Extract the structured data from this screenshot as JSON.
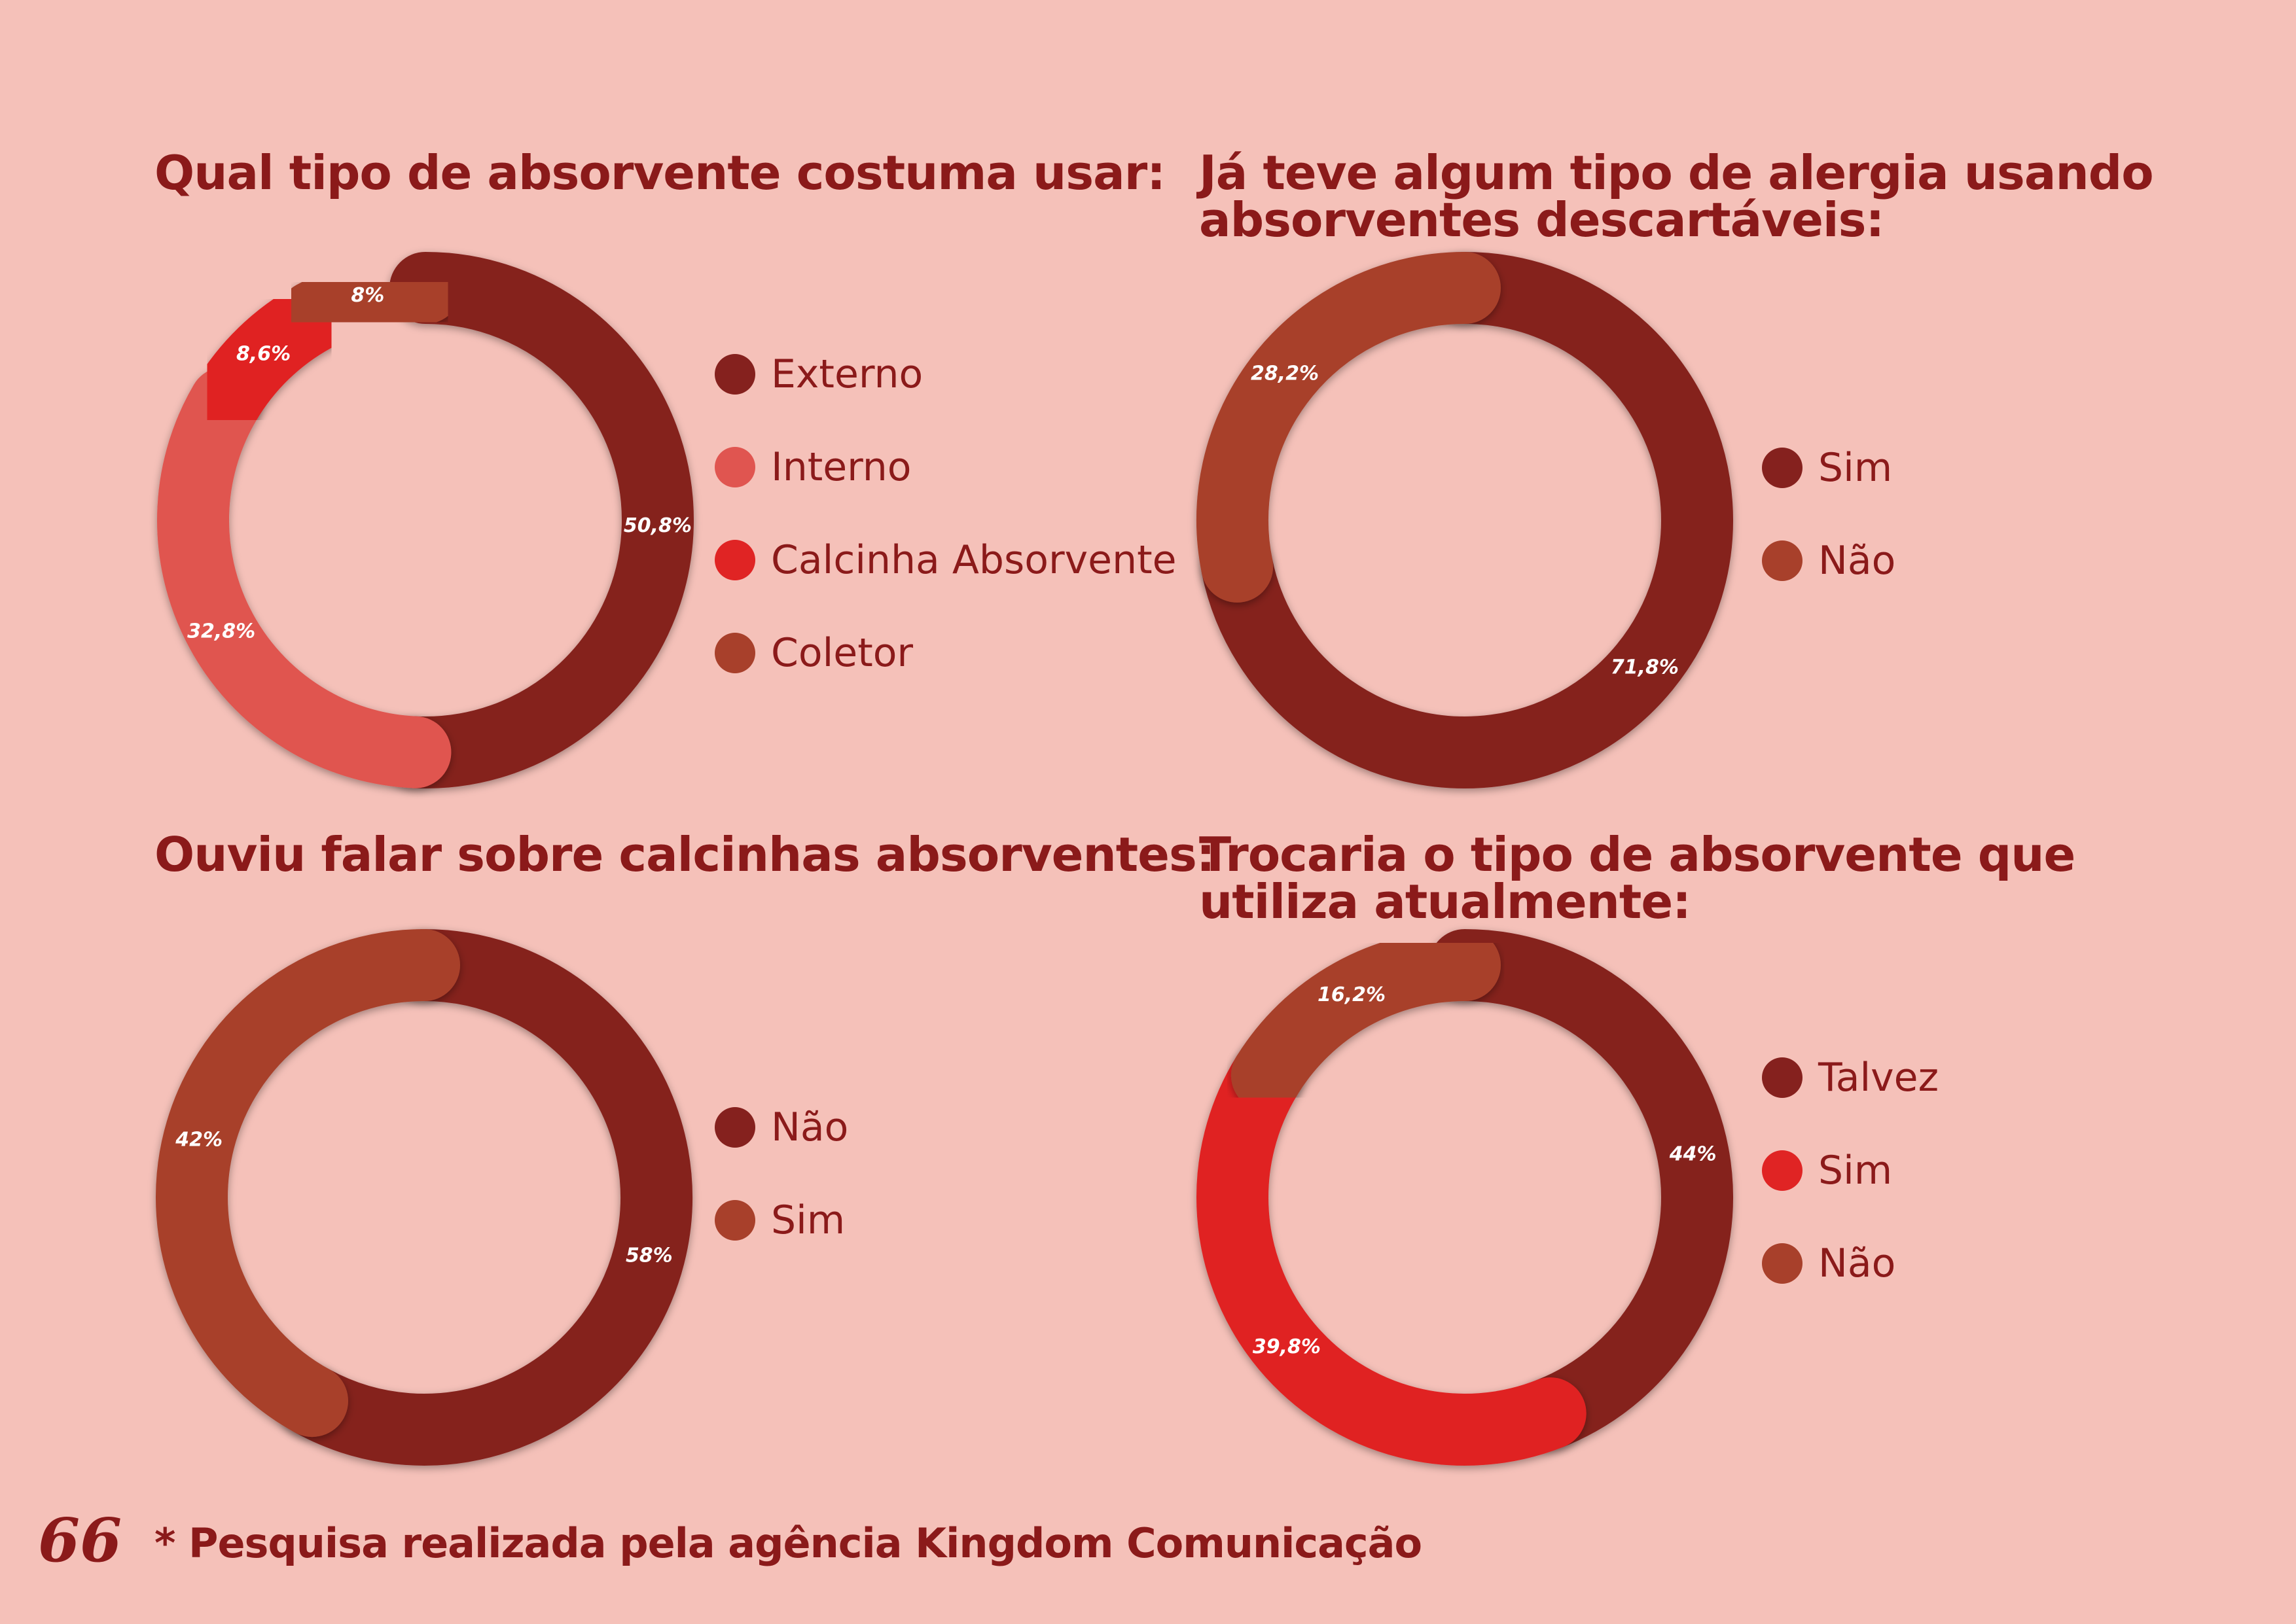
{
  "chart_data": [
    {
      "type": "pie",
      "title": "Qual tipo de absorvente costuma usar:",
      "categories": [
        "Externo",
        "Interno",
        "Calcinha Absorvente",
        "Coletor"
      ],
      "values": [
        50.8,
        32.8,
        8.6,
        8
      ],
      "labels": [
        "50,8%",
        "32,8%",
        "8,6%",
        "8%"
      ],
      "colors": [
        "#85211e",
        "#e05550",
        "#e02424",
        "#a8402b"
      ],
      "legend": "right"
    },
    {
      "type": "pie",
      "title": "Já teve algum tipo de alergia usando absorventes descartáveis:",
      "title_lines": [
        "Já teve algum tipo de alergia usando",
        "absorventes descartáveis:"
      ],
      "categories": [
        "Sim",
        "Não"
      ],
      "values": [
        71.8,
        28.2
      ],
      "labels": [
        "71,8%",
        "28,2%"
      ],
      "colors": [
        "#85211e",
        "#a8402b"
      ],
      "legend": "right"
    },
    {
      "type": "pie",
      "title": "Ouviu falar sobre calcinhas absorventes:",
      "categories": [
        "Não",
        "Sim"
      ],
      "values": [
        58,
        42
      ],
      "labels": [
        "58%",
        "42%"
      ],
      "colors": [
        "#85211e",
        "#a8402b"
      ],
      "legend": "right"
    },
    {
      "type": "pie",
      "title": "Trocaria o tipo de absorvente que utiliza atualmente:",
      "title_lines": [
        "Trocaria o tipo de absorvente que",
        "utiliza atualmente:"
      ],
      "categories": [
        "Talvez",
        "Sim",
        "Não"
      ],
      "values": [
        44,
        39.8,
        16.2
      ],
      "labels": [
        "44%",
        "39,8%",
        "16,2%"
      ],
      "colors": [
        "#85211e",
        "#e02424",
        "#a8402b"
      ],
      "legend": "right"
    }
  ],
  "footer": {
    "page_number": "66",
    "note": "* Pesquisa realizada pela agência Kingdom Comunicação"
  }
}
